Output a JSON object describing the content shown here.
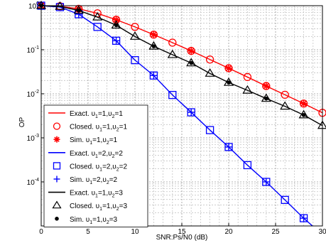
{
  "chart_data": {
    "type": "line",
    "title": "",
    "xlabel": "SNR:Ps/N0 (dB)",
    "ylabel": "OP",
    "xlim": [
      0,
      30
    ],
    "ylim_log10": [
      -5,
      0
    ],
    "y_scale": "log",
    "grid": true,
    "legend_position": "bottom-left",
    "x_ticks": [
      "0",
      "5",
      "10",
      "15",
      "20",
      "25",
      "30"
    ],
    "y_ticks": [
      {
        "base": "10",
        "exp": "0"
      },
      {
        "base": "10",
        "exp": "-1"
      },
      {
        "base": "10",
        "exp": "-2"
      },
      {
        "base": "10",
        "exp": "-3"
      },
      {
        "base": "10",
        "exp": "-4"
      }
    ],
    "series": [
      {
        "label_prefix": "Exact.",
        "legend_suffix": "=1,",
        "legend_suffix2": "=1",
        "style": "line",
        "color": "#ff0000",
        "x": [
          0,
          2,
          4,
          6,
          8,
          10,
          12,
          14,
          16,
          18,
          20,
          22,
          24,
          26,
          28,
          30
        ],
        "y": [
          1.0,
          0.97,
          0.85,
          0.67,
          0.48,
          0.33,
          0.22,
          0.145,
          0.094,
          0.06,
          0.038,
          0.024,
          0.015,
          0.0095,
          0.006,
          0.0037
        ]
      },
      {
        "label_prefix": "Closed.",
        "legend_suffix": "=1,",
        "legend_suffix2": "=1",
        "style": "circle",
        "color": "#ff0000",
        "x": [
          0,
          2,
          4,
          6,
          8,
          10,
          12,
          14,
          16,
          18,
          20,
          22,
          24,
          26,
          28,
          30
        ],
        "y": [
          1.0,
          0.97,
          0.85,
          0.67,
          0.48,
          0.33,
          0.22,
          0.145,
          0.094,
          0.06,
          0.038,
          0.024,
          0.015,
          0.0095,
          0.006,
          0.0037
        ]
      },
      {
        "label_prefix": "Sim.",
        "legend_suffix": "=1,",
        "legend_suffix2": "=1",
        "style": "star",
        "color": "#ff0000",
        "x": [
          0,
          4,
          8,
          12,
          16,
          20,
          24,
          28
        ],
        "y": [
          1.0,
          0.85,
          0.48,
          0.22,
          0.094,
          0.038,
          0.015,
          0.006
        ]
      },
      {
        "label_prefix": "Exact.",
        "legend_suffix": "=2,",
        "legend_suffix2": "=2",
        "style": "line",
        "color": "#0000ff",
        "x": [
          0,
          2,
          4,
          6,
          8,
          10,
          12,
          14,
          16,
          18,
          20,
          22,
          24,
          26,
          28,
          30
        ],
        "y": [
          1.0,
          0.93,
          0.64,
          0.33,
          0.16,
          0.058,
          0.026,
          0.0094,
          0.0038,
          0.0015,
          0.00062,
          0.00024,
          0.0001,
          3.9e-05,
          1.5e-05,
          6.3e-06
        ]
      },
      {
        "label_prefix": "Closed.",
        "legend_suffix": "=2,",
        "legend_suffix2": "=2",
        "style": "square",
        "color": "#0000ff",
        "x": [
          0,
          2,
          4,
          6,
          8,
          10,
          12,
          14,
          16,
          18,
          20,
          22,
          24,
          26,
          28
        ],
        "y": [
          1.0,
          0.93,
          0.64,
          0.33,
          0.16,
          0.058,
          0.026,
          0.0094,
          0.0038,
          0.0015,
          0.00062,
          0.00024,
          0.0001,
          3.9e-05,
          1.5e-05
        ]
      },
      {
        "label_prefix": "Sim.",
        "legend_suffix": "=2,",
        "legend_suffix2": "=2",
        "style": "plus",
        "color": "#0000ff",
        "x": [
          0,
          4,
          8,
          12,
          16,
          20,
          24,
          28
        ],
        "y": [
          1.0,
          0.64,
          0.16,
          0.026,
          0.0038,
          0.00062,
          0.0001,
          1.5e-05
        ]
      },
      {
        "label_prefix": "Exact.",
        "legend_suffix": "=1,",
        "legend_suffix2": "=3",
        "style": "line",
        "color": "#000000",
        "x": [
          0,
          2,
          4,
          6,
          8,
          10,
          12,
          14,
          16,
          18,
          20,
          22,
          24,
          26,
          28,
          30
        ],
        "y": [
          1.0,
          0.96,
          0.78,
          0.55,
          0.36,
          0.2,
          0.12,
          0.077,
          0.05,
          0.029,
          0.018,
          0.012,
          0.0078,
          0.0052,
          0.0033,
          0.0019
        ]
      },
      {
        "label_prefix": "Closed.",
        "legend_suffix": "=1,",
        "legend_suffix2": "=3",
        "style": "triangle",
        "color": "#000000",
        "x": [
          0,
          2,
          4,
          6,
          8,
          10,
          12,
          14,
          16,
          18,
          20,
          22,
          24,
          26,
          28,
          30
        ],
        "y": [
          1.0,
          0.96,
          0.78,
          0.55,
          0.36,
          0.2,
          0.12,
          0.077,
          0.05,
          0.029,
          0.018,
          0.012,
          0.0078,
          0.0052,
          0.0033,
          0.0019
        ]
      },
      {
        "label_prefix": "Sim.",
        "legend_suffix": "=1,",
        "legend_suffix2": "=3",
        "style": "dot",
        "color": "#000000",
        "x": [
          0,
          4,
          8,
          12,
          16,
          20,
          24,
          28
        ],
        "y": [
          1.0,
          0.78,
          0.36,
          0.12,
          0.05,
          0.018,
          0.0078,
          0.0033
        ]
      }
    ],
    "legend_greek": "υ",
    "legend_sub1": "1",
    "legend_sub2": "2"
  }
}
